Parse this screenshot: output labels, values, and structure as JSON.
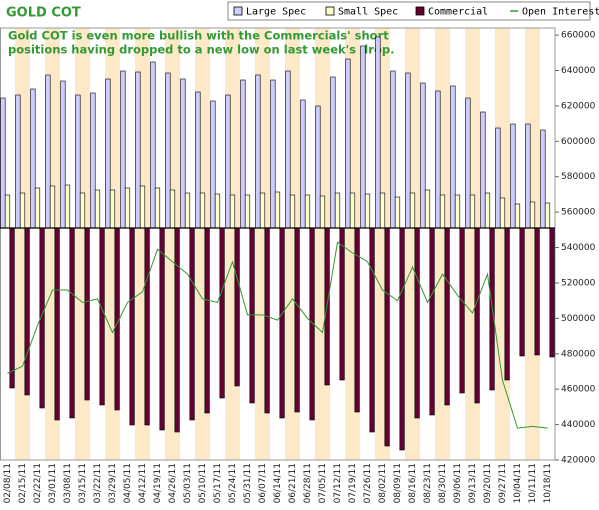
{
  "chart_data": {
    "type": "bar",
    "title": "GOLD COT",
    "annotation": [
      "Gold COT is even more bullish with the Commercials' short",
      "positions having dropped to a new low on last week's drop."
    ],
    "categories": [
      "02/08/11",
      "02/15/11",
      "02/22/11",
      "03/01/11",
      "03/08/11",
      "03/15/11",
      "03/22/11",
      "03/29/11",
      "04/05/11",
      "04/12/11",
      "04/19/11",
      "04/26/11",
      "05/03/11",
      "05/10/11",
      "05/17/11",
      "05/24/11",
      "05/31/11",
      "06/07/11",
      "06/14/11",
      "06/21/11",
      "06/28/11",
      "07/05/11",
      "07/12/11",
      "07/19/11",
      "07/26/11",
      "08/02/11",
      "08/09/11",
      "08/16/11",
      "08/23/11",
      "08/30/11",
      "09/06/11",
      "09/13/11",
      "09/20/11",
      "09/27/11",
      "10/04/11",
      "10/11/11",
      "10/18/11"
    ],
    "series": [
      {
        "name": "Large Spec",
        "color": "#ccccff",
        "values": [
          130000,
          133000,
          139000,
          153000,
          147000,
          133000,
          135000,
          149000,
          157000,
          156000,
          166000,
          155000,
          149000,
          136000,
          127000,
          133000,
          148000,
          153000,
          148000,
          157000,
          128000,
          122000,
          151000,
          169000,
          182000,
          191000,
          157000,
          155000,
          145000,
          137000,
          142000,
          130000,
          116000,
          100000,
          104000,
          104000,
          98000
        ]
      },
      {
        "name": "Small Spec",
        "color": "#ffffcc",
        "values": [
          33000,
          35000,
          40000,
          42000,
          43000,
          35000,
          38000,
          38000,
          40000,
          42000,
          40000,
          38000,
          35000,
          35000,
          34000,
          33000,
          33000,
          35000,
          36000,
          33000,
          33000,
          32000,
          35000,
          35000,
          34000,
          35000,
          31000,
          35000,
          38000,
          33000,
          33000,
          33000,
          35000,
          30000,
          24000,
          26000,
          25000
        ]
      },
      {
        "name": "Commercial",
        "color": "#660033",
        "values": [
          -160000,
          -167000,
          -180000,
          -192000,
          -190000,
          -172000,
          -177000,
          -182000,
          -197000,
          -197000,
          -202000,
          -204000,
          -192000,
          -185000,
          -170000,
          -158000,
          -175000,
          -185000,
          -190000,
          -184000,
          -192000,
          -157000,
          -152000,
          -184000,
          -204000,
          -218000,
          -222000,
          -190000,
          -187000,
          -177000,
          -165000,
          -175000,
          -162000,
          -152000,
          -128000,
          -127000,
          -129000
        ]
      },
      {
        "name": "Open Interest",
        "color": "#339933",
        "type": "line",
        "axis": "y2",
        "values": [
          469000,
          473000,
          496000,
          516000,
          516000,
          509000,
          511000,
          492000,
          509000,
          515000,
          539000,
          532000,
          525000,
          511000,
          509000,
          532000,
          502000,
          502000,
          499000,
          511000,
          500000,
          492000,
          543000,
          537000,
          532000,
          516000,
          510000,
          529000,
          509000,
          525000,
          513000,
          503000,
          525000,
          465000,
          438000,
          439000,
          438000
        ]
      }
    ],
    "ylim": [
      -232000,
      200000
    ],
    "y2lim": [
      420000,
      664000
    ],
    "y2ticks": [
      420000,
      440000,
      460000,
      480000,
      500000,
      520000,
      540000,
      560000,
      580000,
      600000,
      620000,
      640000,
      660000
    ],
    "legend": "top-right"
  }
}
